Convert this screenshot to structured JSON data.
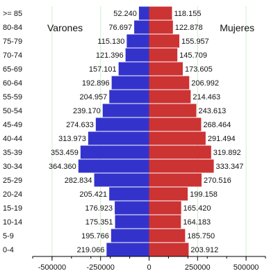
{
  "chart_data": {
    "type": "bar",
    "orientation": "horizontal",
    "subtype": "population-pyramid",
    "categories": [
      ">= 85",
      "80-84",
      "75-79",
      "70-74",
      "65-69",
      "60-64",
      "55-59",
      "50-54",
      "45-49",
      "40-44",
      "35-39",
      "30-34",
      "25-29",
      "20-24",
      "15-19",
      "10-14",
      "5-9",
      "0-4"
    ],
    "series": [
      {
        "name": "Varones",
        "color": "#3333cc",
        "values": [
          52240,
          76697,
          115130,
          121396,
          157101,
          192896,
          204957,
          239170,
          274633,
          313973,
          353459,
          364360,
          282834,
          205421,
          176923,
          175351,
          195766,
          219066
        ],
        "labels": [
          "52.240",
          "76.697",
          "115.130",
          "121.396",
          "157.101",
          "192.896",
          "204.957",
          "239.170",
          "274.633",
          "313.973",
          "353.459",
          "364.360",
          "282.834",
          "205.421",
          "176.923",
          "175.351",
          "195.766",
          "219.066"
        ]
      },
      {
        "name": "Mujeres",
        "color": "#cc3333",
        "values": [
          118155,
          122878,
          155957,
          145709,
          173605,
          206992,
          214463,
          243613,
          268464,
          291494,
          319892,
          333347,
          270516,
          199158,
          165420,
          164183,
          185750,
          203912
        ],
        "labels": [
          "118.155",
          "122.878",
          "155.957",
          "145.709",
          "173.605",
          "206.992",
          "214.463",
          "243.613",
          "268.464",
          "291.494",
          "319.892",
          "333.347",
          "270.516",
          "199.158",
          "165.420",
          "164.183",
          "185.750",
          "203.912"
        ]
      }
    ],
    "xlim": [
      -600000,
      600000
    ],
    "xticks": [
      -500000,
      -250000,
      0,
      250000,
      500000
    ],
    "xtick_labels": [
      "-500000",
      "-250000",
      "0",
      "250000",
      "500000"
    ],
    "xminor_step": 100000,
    "grid": "vertical",
    "grid_color": "#ccf0cc",
    "legend": "inline-labels-top"
  }
}
